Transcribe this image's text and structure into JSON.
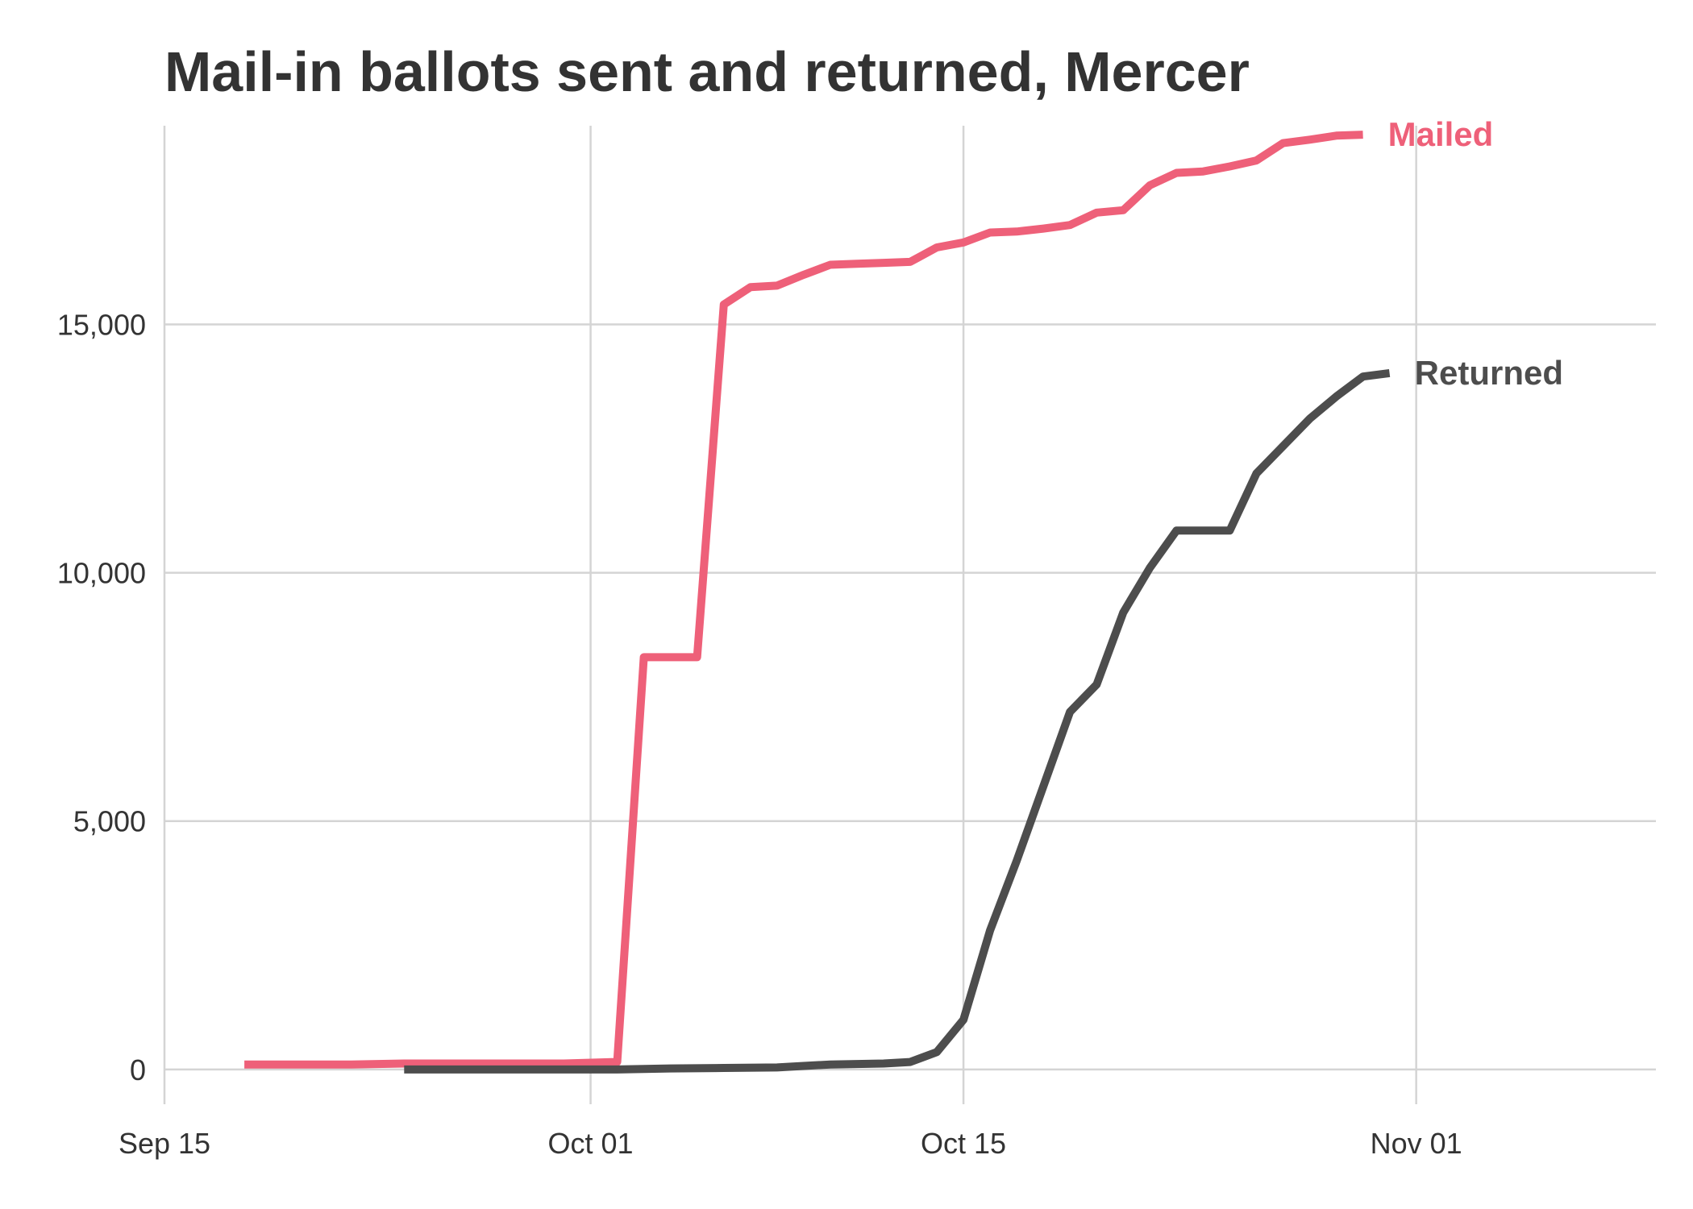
{
  "chart_data": {
    "type": "line",
    "title": "Mail-in ballots sent and returned, Mercer",
    "subtitle": "",
    "xlabel": "",
    "ylabel": "",
    "x_axis": {
      "type": "date",
      "range": [
        "2020-09-15",
        "2020-11-10"
      ],
      "ticks": [
        {
          "value": "2020-09-15",
          "label": "Sep 15"
        },
        {
          "value": "2020-10-01",
          "label": "Oct 01"
        },
        {
          "value": "2020-10-15",
          "label": "Oct 15"
        },
        {
          "value": "2020-11-01",
          "label": "Nov 01"
        }
      ]
    },
    "y_axis": {
      "range": [
        -700,
        19000
      ],
      "ticks": [
        {
          "value": 0,
          "label": "0"
        },
        {
          "value": 5000,
          "label": "5,000"
        },
        {
          "value": 10000,
          "label": "10,000"
        },
        {
          "value": 15000,
          "label": "15,000"
        }
      ]
    },
    "grid": true,
    "legend": "direct labels at line ends",
    "series": [
      {
        "name": "Mailed",
        "color": "#EE6079",
        "points": [
          [
            "2020-09-18",
            100
          ],
          [
            "2020-09-20",
            100
          ],
          [
            "2020-09-22",
            100
          ],
          [
            "2020-09-24",
            120
          ],
          [
            "2020-09-26",
            120
          ],
          [
            "2020-09-28",
            120
          ],
          [
            "2020-09-30",
            120
          ],
          [
            "2020-10-02",
            150
          ],
          [
            "2020-10-03",
            8300
          ],
          [
            "2020-10-04",
            8300
          ],
          [
            "2020-10-05",
            8300
          ],
          [
            "2020-10-06",
            15400
          ],
          [
            "2020-10-07",
            15750
          ],
          [
            "2020-10-08",
            15780
          ],
          [
            "2020-10-09",
            16000
          ],
          [
            "2020-10-10",
            16200
          ],
          [
            "2020-10-11",
            16220
          ],
          [
            "2020-10-12",
            16240
          ],
          [
            "2020-10-13",
            16260
          ],
          [
            "2020-10-14",
            16550
          ],
          [
            "2020-10-15",
            16650
          ],
          [
            "2020-10-16",
            16850
          ],
          [
            "2020-10-17",
            16870
          ],
          [
            "2020-10-18",
            16930
          ],
          [
            "2020-10-19",
            17000
          ],
          [
            "2020-10-20",
            17250
          ],
          [
            "2020-10-21",
            17300
          ],
          [
            "2020-10-22",
            17800
          ],
          [
            "2020-10-23",
            18050
          ],
          [
            "2020-10-24",
            18080
          ],
          [
            "2020-10-25",
            18180
          ],
          [
            "2020-10-26",
            18300
          ],
          [
            "2020-10-27",
            18650
          ],
          [
            "2020-10-28",
            18720
          ],
          [
            "2020-10-29",
            18800
          ],
          [
            "2020-10-30",
            18820
          ]
        ]
      },
      {
        "name": "Returned",
        "color": "#4D4D4D",
        "points": [
          [
            "2020-09-24",
            0
          ],
          [
            "2020-09-26",
            0
          ],
          [
            "2020-09-28",
            0
          ],
          [
            "2020-09-30",
            0
          ],
          [
            "2020-10-02",
            0
          ],
          [
            "2020-10-04",
            20
          ],
          [
            "2020-10-06",
            30
          ],
          [
            "2020-10-08",
            40
          ],
          [
            "2020-10-09",
            70
          ],
          [
            "2020-10-10",
            100
          ],
          [
            "2020-10-11",
            110
          ],
          [
            "2020-10-12",
            120
          ],
          [
            "2020-10-13",
            150
          ],
          [
            "2020-10-14",
            350
          ],
          [
            "2020-10-15",
            1000
          ],
          [
            "2020-10-16",
            2800
          ],
          [
            "2020-10-17",
            4200
          ],
          [
            "2020-10-18",
            5700
          ],
          [
            "2020-10-19",
            7200
          ],
          [
            "2020-10-20",
            7750
          ],
          [
            "2020-10-21",
            9200
          ],
          [
            "2020-10-22",
            10100
          ],
          [
            "2020-10-23",
            10850
          ],
          [
            "2020-10-24",
            10850
          ],
          [
            "2020-10-25",
            10850
          ],
          [
            "2020-10-26",
            12000
          ],
          [
            "2020-10-27",
            12550
          ],
          [
            "2020-10-28",
            13100
          ],
          [
            "2020-10-29",
            13550
          ],
          [
            "2020-10-30",
            13950
          ],
          [
            "2020-10-31",
            14020
          ]
        ]
      }
    ]
  }
}
